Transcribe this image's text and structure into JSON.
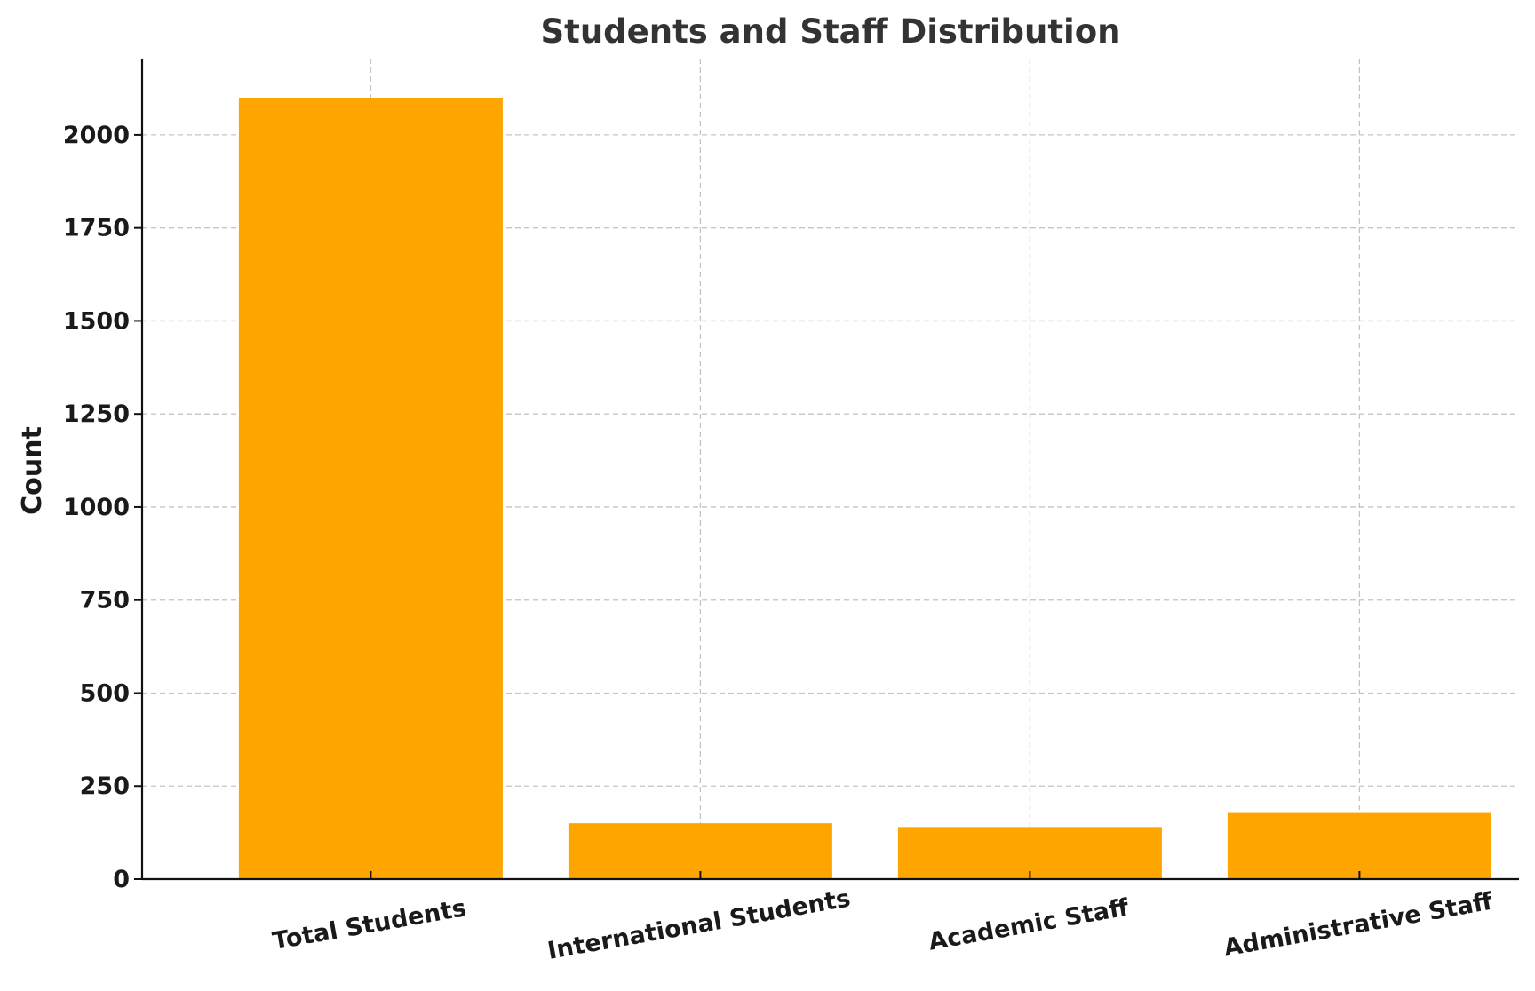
{
  "chart_data": {
    "type": "bar",
    "title": "Students and Staff Distribution",
    "xlabel": "",
    "ylabel": "Count",
    "categories": [
      "Total Students",
      "International Students",
      "Academic Staff",
      "Administrative Staff"
    ],
    "values": [
      2100,
      150,
      140,
      180
    ],
    "ylim": [
      0,
      2205
    ],
    "yticks": [
      0,
      250,
      500,
      750,
      1000,
      1250,
      1500,
      1750,
      2000
    ],
    "grid": true,
    "legend": "none",
    "bar_color": "#FFA500"
  }
}
